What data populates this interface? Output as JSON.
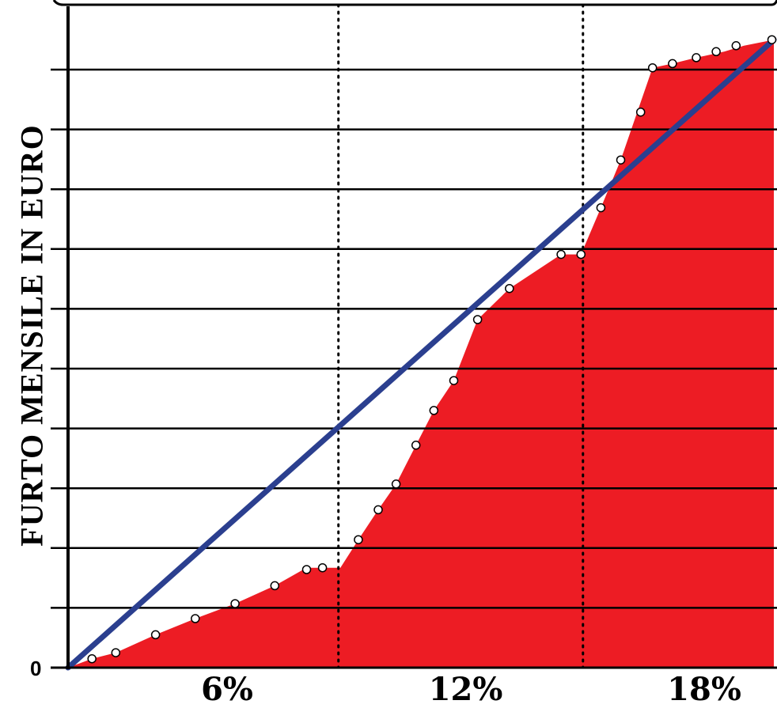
{
  "chart_data": {
    "type": "area",
    "ylabel": "FURTO MENSILE IN EURO",
    "xlabel": "",
    "x_tick_labels": [
      {
        "x": 6,
        "label": "6%"
      },
      {
        "x": 12,
        "label": "12%"
      },
      {
        "x": 18,
        "label": "18%"
      }
    ],
    "y_tick_labels": [
      {
        "y": 0,
        "label": "0"
      }
    ],
    "y_gridline_count": 10,
    "grid": true,
    "xlim": [
      2,
      19.75
    ],
    "ylim": [
      0,
      11
    ],
    "vertical_reference_lines": [
      8.8,
      14.95
    ],
    "area_series": {
      "color": "#ED1C24",
      "x": [
        2,
        2.6,
        3.2,
        4.2,
        5.2,
        6.2,
        7.2,
        8,
        8.85,
        9.3,
        9.8,
        10.25,
        10.75,
        11.2,
        11.7,
        12.3,
        13.1,
        14.4,
        14.9,
        15.4,
        15.9,
        16.7,
        17.2,
        17.8,
        18.5,
        19.0,
        19.75
      ],
      "y": [
        0,
        0.15,
        0.25,
        0.55,
        0.82,
        1.07,
        1.37,
        1.67,
        1.67,
        2.14,
        2.64,
        3.07,
        3.72,
        4.3,
        4.8,
        5.82,
        6.34,
        6.91,
        6.91,
        7.69,
        8.49,
        10.03,
        10.1,
        10.2,
        10.3,
        10.4,
        10.5
      ]
    },
    "point_series": {
      "x": [
        2.6,
        3.2,
        4.2,
        5.2,
        6.2,
        7.2,
        8,
        8.4,
        9.3,
        9.8,
        10.25,
        10.75,
        11.2,
        11.7,
        12.3,
        13.1,
        14.4,
        14.9,
        15.4,
        15.9,
        16.4,
        16.7,
        17.2,
        17.8,
        18.3,
        18.8,
        19.7
      ],
      "y": [
        0.15,
        0.25,
        0.55,
        0.82,
        1.07,
        1.37,
        1.64,
        1.67,
        2.14,
        2.64,
        3.07,
        3.72,
        4.3,
        4.8,
        5.82,
        6.34,
        6.91,
        6.91,
        7.69,
        8.49,
        9.29,
        10.03,
        10.1,
        10.2,
        10.3,
        10.4,
        10.5
      ]
    },
    "line_series": {
      "color": "#2B3F8F",
      "x": [
        2,
        19.75
      ],
      "y": [
        0,
        10.5
      ]
    }
  }
}
